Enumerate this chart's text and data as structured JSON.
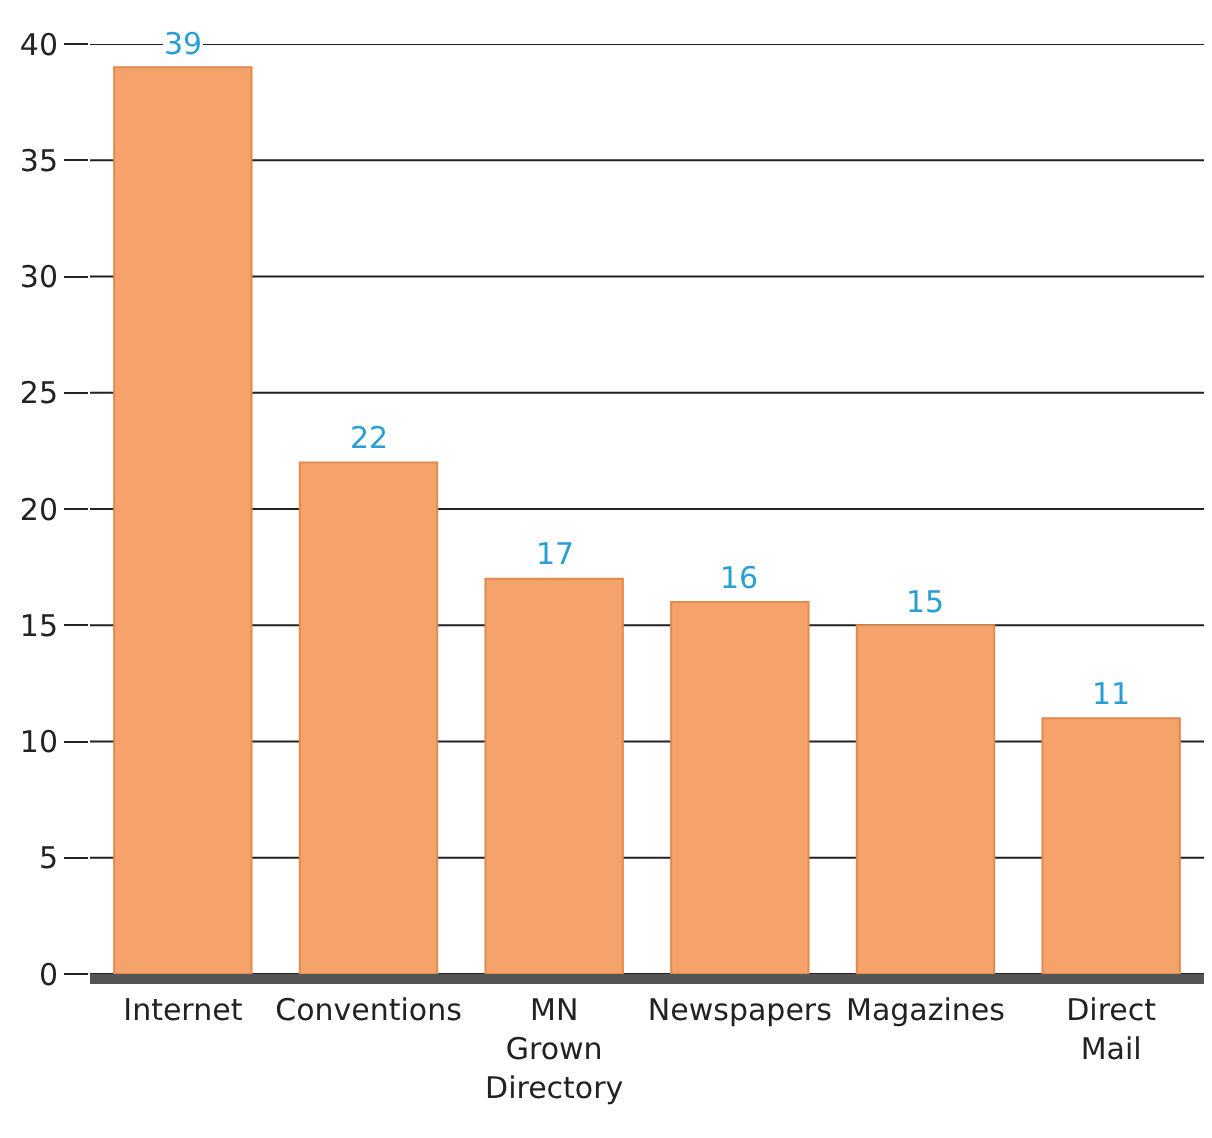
{
  "chart_data": {
    "type": "bar",
    "categories": [
      "Internet",
      "Conventions",
      "MN Grown Directory",
      "Newspapers",
      "Magazines",
      "Direct Mail"
    ],
    "values": [
      39,
      22,
      17,
      16,
      15,
      11
    ],
    "color": "#f5a36b",
    "ylim": [
      0,
      40
    ],
    "yticks": [
      0,
      5,
      10,
      15,
      20,
      25,
      30,
      35,
      40
    ],
    "grid": "y",
    "data_labels": true
  }
}
